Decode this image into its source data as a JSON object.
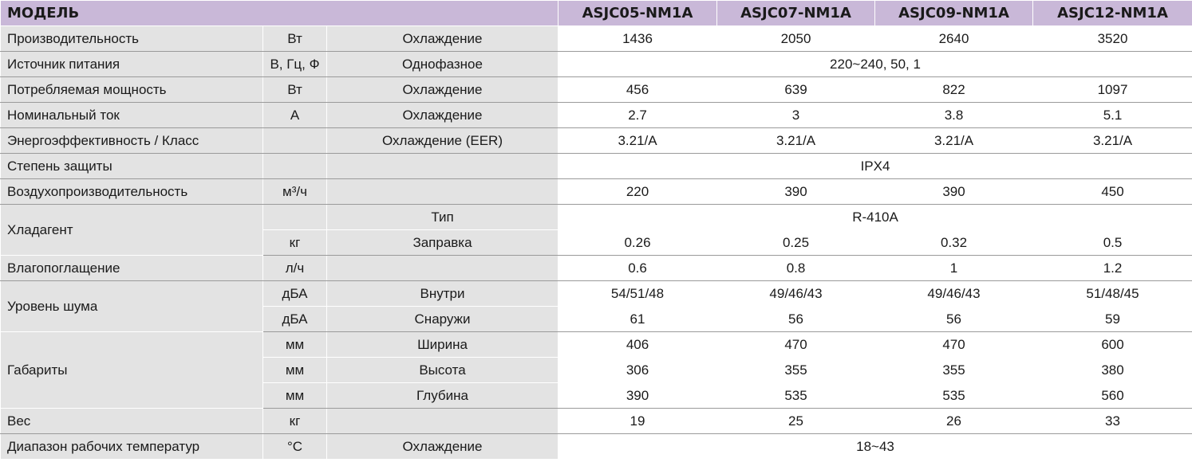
{
  "header": {
    "model_label": "МОДЕЛЬ",
    "models": [
      "ASJC05-NM1A",
      "ASJC07-NM1A",
      "ASJC09-NM1A",
      "ASJC12-NM1A"
    ]
  },
  "rows": {
    "capacity": {
      "param": "Производительность",
      "unit": "Вт",
      "sub": "Охлаждение",
      "values": [
        "1436",
        "2050",
        "2640",
        "3520"
      ]
    },
    "power_supply": {
      "param": "Источник питания",
      "unit": "В, Гц, Ф",
      "sub": "Однофазное",
      "value": "220~240, 50, 1"
    },
    "power_input": {
      "param": "Потребляемая мощность",
      "unit": "Вт",
      "sub": "Охлаждение",
      "values": [
        "456",
        "639",
        "822",
        "1097"
      ]
    },
    "current": {
      "param": "Номинальный ток",
      "unit": "А",
      "sub": "Охлаждение",
      "values": [
        "2.7",
        "3",
        "3.8",
        "5.1"
      ]
    },
    "efficiency": {
      "param": "Энергоэффективность / Класс",
      "unit": "",
      "sub": "Охлаждение (EER)",
      "values": [
        "3.21/A",
        "3.21/A",
        "3.21/A",
        "3.21/A"
      ]
    },
    "protection": {
      "param": "Степень защиты",
      "unit": "",
      "sub": "",
      "value": "IPX4"
    },
    "airflow": {
      "param": "Воздухопроизводительность",
      "unit": "м³/ч",
      "sub": "",
      "values": [
        "220",
        "390",
        "390",
        "450"
      ]
    },
    "refrigerant": {
      "param": "Хладагент",
      "type": {
        "unit": "",
        "sub": "Тип",
        "value": "R-410A"
      },
      "charge": {
        "unit": "кг",
        "sub": "Заправка",
        "values": [
          "0.26",
          "0.25",
          "0.32",
          "0.5"
        ]
      }
    },
    "dehumid": {
      "param": "Влагопоглащение",
      "unit": "л/ч",
      "sub": "",
      "values": [
        "0.6",
        "0.8",
        "1",
        "1.2"
      ]
    },
    "noise": {
      "param": "Уровень шума",
      "indoor": {
        "unit": "дБА",
        "sub": "Внутри",
        "values": [
          "54/51/48",
          "49/46/43",
          "49/46/43",
          "51/48/45"
        ]
      },
      "outdoor": {
        "unit": "дБА",
        "sub": "Снаружи",
        "values": [
          "61",
          "56",
          "56",
          "59"
        ]
      }
    },
    "dimensions": {
      "param": "Габариты",
      "width": {
        "unit": "мм",
        "sub": "Ширина",
        "values": [
          "406",
          "470",
          "470",
          "600"
        ]
      },
      "height": {
        "unit": "мм",
        "sub": "Высота",
        "values": [
          "306",
          "355",
          "355",
          "380"
        ]
      },
      "depth": {
        "unit": "мм",
        "sub": "Глубина",
        "values": [
          "390",
          "535",
          "535",
          "560"
        ]
      }
    },
    "weight": {
      "param": "Вес",
      "unit": "кг",
      "sub": "",
      "values": [
        "19",
        "25",
        "26",
        "33"
      ]
    },
    "temp_range": {
      "param": "Диапазон рабочих температур",
      "unit": "°C",
      "sub": "Охлаждение",
      "value": "18~43"
    }
  },
  "colors": {
    "header_bg": "#c9b8d8",
    "label_bg": "#e3e3e3",
    "value_bg": "#ffffff"
  }
}
